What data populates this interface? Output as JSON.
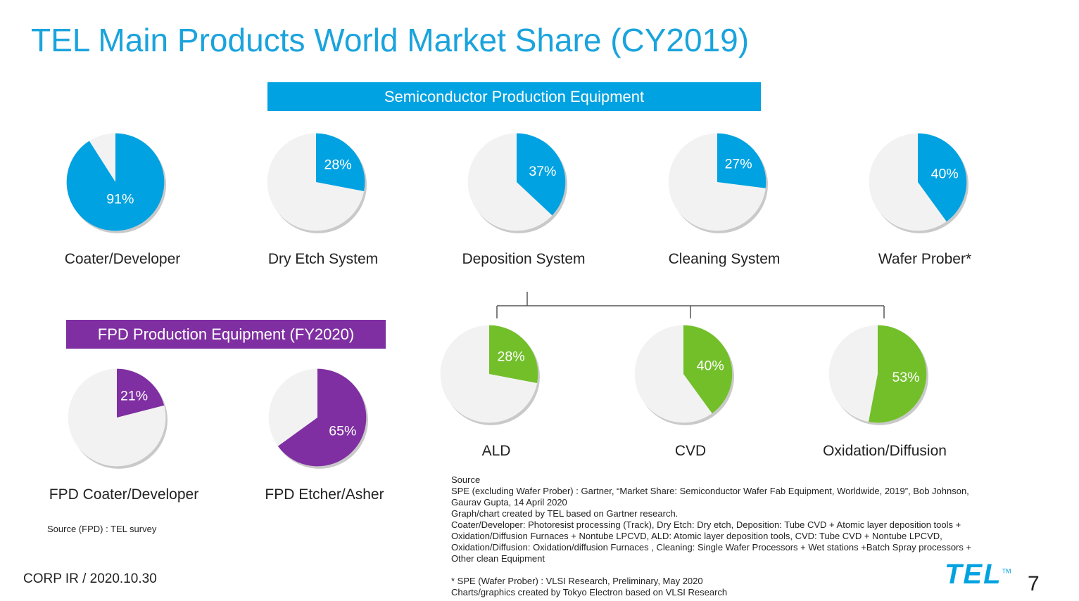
{
  "title": "TEL Main Products World Market Share (CY2019)",
  "bands": {
    "spe": "Semiconductor Production Equipment",
    "fpd": "FPD Production Equipment (FY2020)"
  },
  "colors": {
    "blue": "#00a2e1",
    "purple": "#7f2fa1",
    "green": "#72bf2a",
    "gray": "#f2f2f2"
  },
  "chart_data": [
    {
      "type": "pie",
      "name": "Coater/Developer",
      "share": 91,
      "share_label": "91%",
      "color": "#00a2e1"
    },
    {
      "type": "pie",
      "name": "Dry Etch System",
      "share": 28,
      "share_label": "28%",
      "color": "#00a2e1"
    },
    {
      "type": "pie",
      "name": "Deposition System",
      "share": 37,
      "share_label": "37%",
      "color": "#00a2e1"
    },
    {
      "type": "pie",
      "name": "Cleaning System",
      "share": 27,
      "share_label": "27%",
      "color": "#00a2e1"
    },
    {
      "type": "pie",
      "name": "Wafer Prober*",
      "share": 40,
      "share_label": "40%",
      "color": "#00a2e1"
    },
    {
      "type": "pie",
      "name": "ALD",
      "share": 28,
      "share_label": "28%",
      "color": "#72bf2a"
    },
    {
      "type": "pie",
      "name": "CVD",
      "share": 40,
      "share_label": "40%",
      "color": "#72bf2a"
    },
    {
      "type": "pie",
      "name": "Oxidation/Diffusion",
      "share": 53,
      "share_label": "53%",
      "color": "#72bf2a"
    },
    {
      "type": "pie",
      "name": "FPD Coater/Developer",
      "share": 21,
      "share_label": "21%",
      "color": "#7f2fa1"
    },
    {
      "type": "pie",
      "name": "FPD Etcher/Asher",
      "share": 65,
      "share_label": "65%",
      "color": "#7f2fa1"
    }
  ],
  "source_fpd": "Source (FPD) : TEL survey",
  "source_lines": [
    "Source",
    "SPE (excluding Wafer Prober) : Gartner, “Market Share: Semiconductor Wafer Fab Equipment, Worldwide, 2019”, Bob Johnson,",
    "Gaurav Gupta, 14 April 2020",
    "Graph/chart created by TEL based on Gartner research.",
    "Coater/Developer: Photoresist processing (Track), Dry Etch: Dry etch, Deposition: Tube CVD + Atomic layer deposition tools +",
    "Oxidation/Diffusion Furnaces + Nontube LPCVD, ALD: Atomic layer deposition tools, CVD: Tube CVD + Nontube LPCVD,",
    "Oxidation/Diffusion: Oxidation/diffusion Furnaces , Cleaning: Single Wafer Processors + Wet stations +Batch Spray processors +",
    "Other clean Equipment",
    "",
    "* SPE (Wafer Prober) : VLSI Research, Preliminary, May 2020",
    "Charts/graphics created by Tokyo Electron based on VLSI Research"
  ],
  "footer": "CORP IR / 2020.10.30",
  "page_number": "7",
  "logo": {
    "text": "TEL",
    "mark": "TM"
  }
}
